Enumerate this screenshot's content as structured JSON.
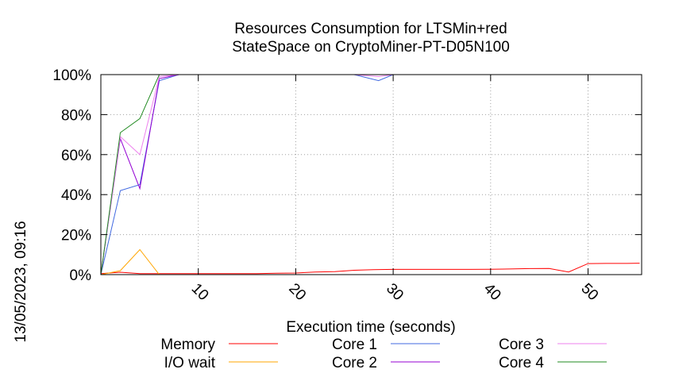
{
  "side_label": "13/05/2023, 09:16",
  "chart_data": {
    "type": "line",
    "title": [
      "Resources Consumption for LTSMin+red",
      "StateSpace on CryptoMiner-PT-D05N100"
    ],
    "xlabel": "Execution time (seconds)",
    "ylabel": "",
    "xlim": [
      0,
      55.5
    ],
    "ylim": [
      0,
      100
    ],
    "x_ticks": [
      10,
      20,
      30,
      40,
      50
    ],
    "y_ticks": [
      0,
      20,
      40,
      60,
      80,
      100
    ],
    "y_tick_labels": [
      "0%",
      "20%",
      "40%",
      "60%",
      "80%",
      "100%"
    ],
    "grid": true,
    "legend": "bottom",
    "series": [
      {
        "name": "Memory",
        "color": "#ff0000",
        "x": [
          0,
          2,
          4,
          6,
          8,
          10,
          12,
          14,
          16,
          18,
          20,
          22,
          24,
          26,
          28,
          30,
          32,
          34,
          36,
          38,
          40,
          42,
          44,
          46,
          48,
          50,
          52,
          54,
          55.3
        ],
        "y": [
          0.5,
          1.2,
          0.5,
          0.5,
          0.5,
          0.5,
          0.5,
          0.5,
          0.5,
          0.7,
          0.8,
          1.3,
          1.5,
          2.2,
          2.5,
          2.6,
          2.6,
          2.6,
          2.6,
          2.6,
          2.7,
          2.8,
          3.0,
          3.1,
          1.3,
          5.5,
          5.6,
          5.6,
          5.7
        ]
      },
      {
        "name": "I/O wait",
        "color": "#ffa500",
        "x": [
          0,
          2,
          4,
          6,
          8,
          10,
          20,
          30,
          40,
          50,
          55.3
        ],
        "y": [
          0,
          2,
          12.5,
          0,
          0,
          0,
          0,
          0,
          0,
          0,
          0
        ]
      },
      {
        "name": "Core 1",
        "color": "#4169e1",
        "x": [
          0,
          2,
          4,
          6,
          8,
          10,
          20,
          26,
          28.5,
          30,
          40,
          50,
          55.3
        ],
        "y": [
          0,
          42,
          45,
          97,
          100,
          100,
          100,
          100,
          97,
          100,
          100,
          100,
          100
        ]
      },
      {
        "name": "Core 2",
        "color": "#9400d3",
        "x": [
          0,
          2,
          4,
          6,
          8,
          10,
          20,
          30,
          40,
          50,
          55.3
        ],
        "y": [
          0,
          68,
          43,
          98,
          100,
          100,
          100,
          100,
          100,
          100,
          100
        ]
      },
      {
        "name": "Core 3",
        "color": "#ee82ee",
        "x": [
          0,
          2,
          4,
          6,
          8,
          10,
          20,
          26,
          28.5,
          30,
          40,
          50,
          55.3
        ],
        "y": [
          0,
          69,
          60,
          99,
          100,
          100,
          100,
          100,
          99,
          100,
          100,
          100,
          100
        ]
      },
      {
        "name": "Core 4",
        "color": "#228b22",
        "x": [
          0,
          2,
          4,
          6,
          8,
          10,
          20,
          30,
          40,
          50,
          55.3
        ],
        "y": [
          0,
          71,
          78,
          100,
          100,
          100,
          100,
          100,
          100,
          100,
          100
        ]
      }
    ]
  }
}
